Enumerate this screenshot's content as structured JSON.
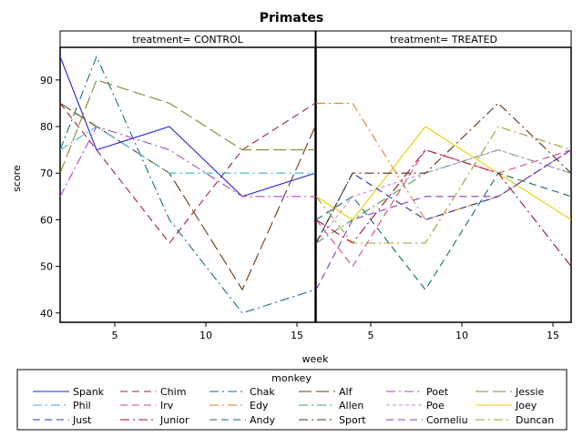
{
  "chart_data": {
    "type": "line",
    "title": "Primates",
    "xlabel": "week",
    "ylabel": "score",
    "xlim": [
      2,
      16
    ],
    "ylim": [
      38,
      97
    ],
    "xticks": [
      5,
      10,
      15
    ],
    "yticks": [
      40,
      50,
      60,
      70,
      80,
      90
    ],
    "x": [
      2,
      4,
      8,
      12,
      16
    ],
    "panels": [
      {
        "label": "treatment= CONTROL",
        "series": [
          {
            "name": "Spank",
            "values": [
              95,
              75,
              80,
              65,
              70
            ]
          },
          {
            "name": "Chim",
            "values": [
              85,
              75,
              55,
              75,
              85
            ]
          },
          {
            "name": "Chak",
            "values": [
              75,
              95,
              60,
              40,
              45
            ]
          },
          {
            "name": "Alf",
            "values": [
              85,
              80,
              70,
              45,
              80
            ]
          },
          {
            "name": "Poet",
            "values": [
              65,
              80,
              75,
              65,
              65
            ]
          },
          {
            "name": "Jessie",
            "values": [
              70,
              90,
              85,
              75,
              75
            ]
          },
          {
            "name": "Phil",
            "values": [
              75,
              80,
              70,
              70,
              70
            ]
          }
        ]
      },
      {
        "label": "treatment= TREATED",
        "series": [
          {
            "name": "Irv",
            "values": [
              60,
              50,
              75,
              70,
              75
            ]
          },
          {
            "name": "Edy",
            "values": [
              85,
              85,
              60,
              65,
              75
            ]
          },
          {
            "name": "Allen",
            "values": [
              55,
              60,
              70,
              75,
              70
            ]
          },
          {
            "name": "Poe",
            "values": [
              55,
              65,
              70,
              75,
              70
            ]
          },
          {
            "name": "Joey",
            "values": [
              65,
              60,
              80,
              70,
              60
            ]
          },
          {
            "name": "Just",
            "values": [
              55,
              70,
              60,
              65,
              75
            ]
          },
          {
            "name": "Junior",
            "values": [
              60,
              55,
              75,
              70,
              50
            ]
          },
          {
            "name": "Andy",
            "values": [
              60,
              65,
              45,
              70,
              65
            ]
          },
          {
            "name": "Sport",
            "values": [
              55,
              70,
              70,
              85,
              70
            ]
          },
          {
            "name": "Corneliu",
            "values": [
              45,
              60,
              65,
              65,
              75
            ]
          },
          {
            "name": "Duncan",
            "values": [
              65,
              55,
              55,
              80,
              75
            ]
          }
        ]
      }
    ],
    "legend": {
      "title": "monkey",
      "placement": "bottom",
      "entries": [
        {
          "name": "Spank",
          "color": "#2222dd",
          "dash": "none"
        },
        {
          "name": "Chim",
          "color": "#a02432",
          "dash": "long"
        },
        {
          "name": "Chak",
          "color": "#11707a",
          "dash": "dashdot"
        },
        {
          "name": "Alf",
          "color": "#6b3a12",
          "dash": "longdash"
        },
        {
          "name": "Poet",
          "color": "#b144c9",
          "dash": "dashdot"
        },
        {
          "name": "Jessie",
          "color": "#7c8c2a",
          "dash": "longdash"
        },
        {
          "name": "Phil",
          "color": "#33b6c9",
          "dash": "dashdot"
        },
        {
          "name": "Irv",
          "color": "#d64a80",
          "dash": "long"
        },
        {
          "name": "Edy",
          "color": "#d7832a",
          "dash": "dashdot"
        },
        {
          "name": "Allen",
          "color": "#44a044",
          "dash": "dashdot"
        },
        {
          "name": "Poe",
          "color": "#c58de0",
          "dash": "shortdash"
        },
        {
          "name": "Joey",
          "color": "#e8d000",
          "dash": "none"
        },
        {
          "name": "Just",
          "color": "#2233aa",
          "dash": "long"
        },
        {
          "name": "Junior",
          "color": "#a6122e",
          "dash": "dashdot"
        },
        {
          "name": "Andy",
          "color": "#156a6a",
          "dash": "long"
        },
        {
          "name": "Sport",
          "color": "#5d2e10",
          "dash": "dashdot"
        },
        {
          "name": "Corneliu",
          "color": "#8a38c2",
          "dash": "long"
        },
        {
          "name": "Duncan",
          "color": "#a29a2e",
          "dash": "dashdot"
        }
      ]
    }
  }
}
